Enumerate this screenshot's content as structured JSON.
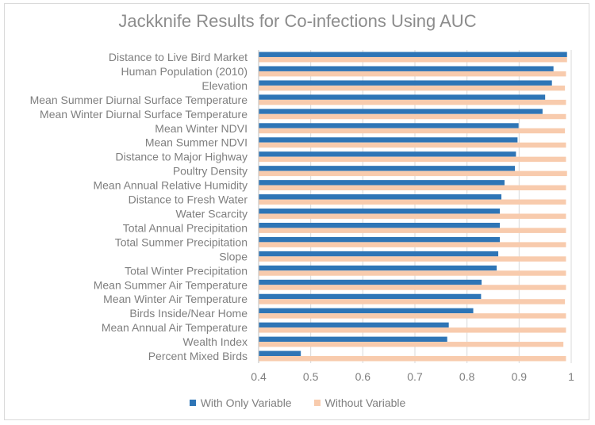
{
  "chart_data": {
    "type": "bar",
    "orientation": "horizontal",
    "title": "Jackknife Results for Co-infections Using AUC",
    "xlabel": "",
    "ylabel": "",
    "xlim": [
      0.4,
      1.0
    ],
    "xticks": [
      "0.4",
      "0.5",
      "0.6",
      "0.7",
      "0.8",
      "0.9",
      "1"
    ],
    "grid": true,
    "legend_position": "bottom",
    "categories": [
      "Distance to Live Bird Market",
      "Human Population (2010)",
      "Elevation",
      "Mean Summer Diurnal Surface Temperature",
      "Mean Winter Diurnal Surface Temperature",
      "Mean Winter NDVI",
      "Mean Summer NDVI",
      "Distance to Major Highway",
      "Poultry Density",
      "Mean Annual Relative Humidity",
      "Distance to Fresh Water",
      "Water Scarcity",
      "Total Annual Precipitation",
      "Total Summer Precipitation",
      "Slope",
      "Total Winter Precipitation",
      "Mean Summer Air Temperature",
      "Mean Winter Air Temperature",
      "Birds Inside/Near Home",
      "Mean Annual Air Temperature",
      "Wealth Index",
      "Percent Mixed Birds"
    ],
    "series": [
      {
        "name": "With Only Variable",
        "color": "#2e75b6",
        "values": [
          0.992,
          0.966,
          0.963,
          0.95,
          0.945,
          0.899,
          0.897,
          0.894,
          0.892,
          0.872,
          0.866,
          0.863,
          0.863,
          0.863,
          0.86,
          0.857,
          0.828,
          0.827,
          0.812,
          0.765,
          0.762,
          0.481
        ]
      },
      {
        "name": "Without Variable",
        "color": "#f8cbad",
        "values": [
          0.992,
          0.99,
          0.988,
          0.99,
          0.99,
          0.988,
          0.99,
          0.99,
          0.992,
          0.99,
          0.99,
          0.99,
          0.99,
          0.99,
          0.99,
          0.99,
          0.99,
          0.988,
          0.99,
          0.99,
          0.985,
          0.99
        ]
      }
    ]
  }
}
